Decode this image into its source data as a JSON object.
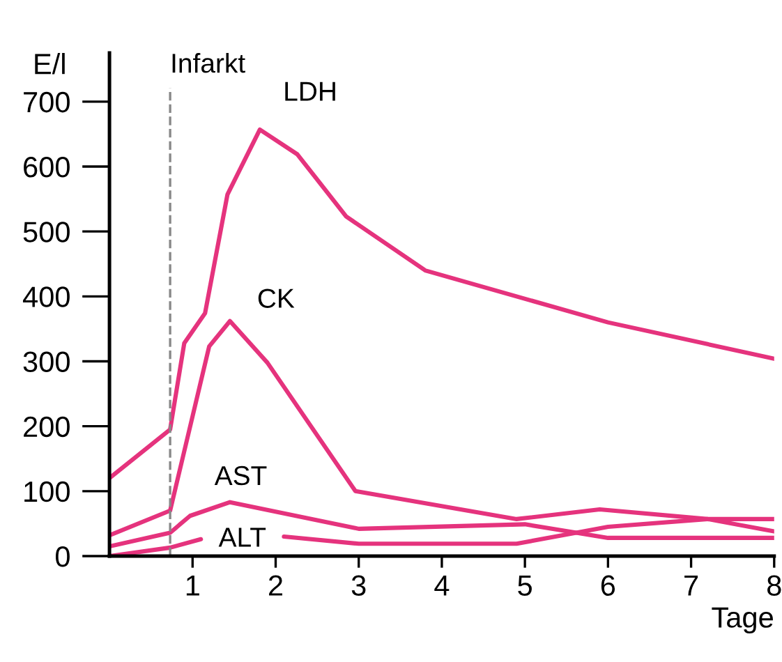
{
  "chart_data": {
    "type": "line",
    "ylabel": "E/l",
    "xlabel": "Tage",
    "xlim": [
      0,
      8
    ],
    "ylim": [
      0,
      775
    ],
    "xticks": [
      1,
      2,
      3,
      4,
      5,
      6,
      7,
      8
    ],
    "yticks": [
      0,
      100,
      200,
      300,
      400,
      500,
      600,
      700
    ],
    "grid": false,
    "legend": false,
    "marker": "none",
    "line_style": "solid",
    "series": [
      {
        "name": "LDH",
        "color": "#e5337d",
        "x": [
          0,
          0.73,
          0.9,
          1.15,
          1.42,
          1.81,
          2.26,
          2.85,
          3.8,
          6,
          8
        ],
        "values": [
          120,
          195,
          328,
          374,
          557,
          657,
          619,
          523,
          440,
          360,
          304
        ]
      },
      {
        "name": "CK",
        "color": "#e5337d",
        "x": [
          0,
          0.73,
          1.2,
          1.45,
          1.9,
          2.96,
          4.9,
          5.9,
          7.2,
          8
        ],
        "values": [
          32,
          70,
          323,
          362,
          298,
          100,
          57,
          72,
          57,
          38
        ]
      },
      {
        "name": "AST",
        "color": "#e5337d",
        "x": [
          0,
          0.73,
          0.97,
          1.45,
          3,
          5,
          6,
          8
        ],
        "values": [
          15,
          36,
          62,
          83,
          42,
          49,
          28,
          28
        ]
      },
      {
        "name": "ALT",
        "color": "#e5337d",
        "x": [
          0,
          0.73,
          1.1,
          1.6,
          2.1,
          3,
          4.9,
          6,
          7.2,
          8
        ],
        "values": [
          0,
          13,
          26,
          null,
          30,
          19,
          19,
          45,
          57,
          57
        ]
      }
    ],
    "ref_lines": [
      {
        "axis": "x",
        "value": 0.73,
        "label": "Infarkt",
        "color": "#888888",
        "line_style": "dashed"
      }
    ]
  }
}
